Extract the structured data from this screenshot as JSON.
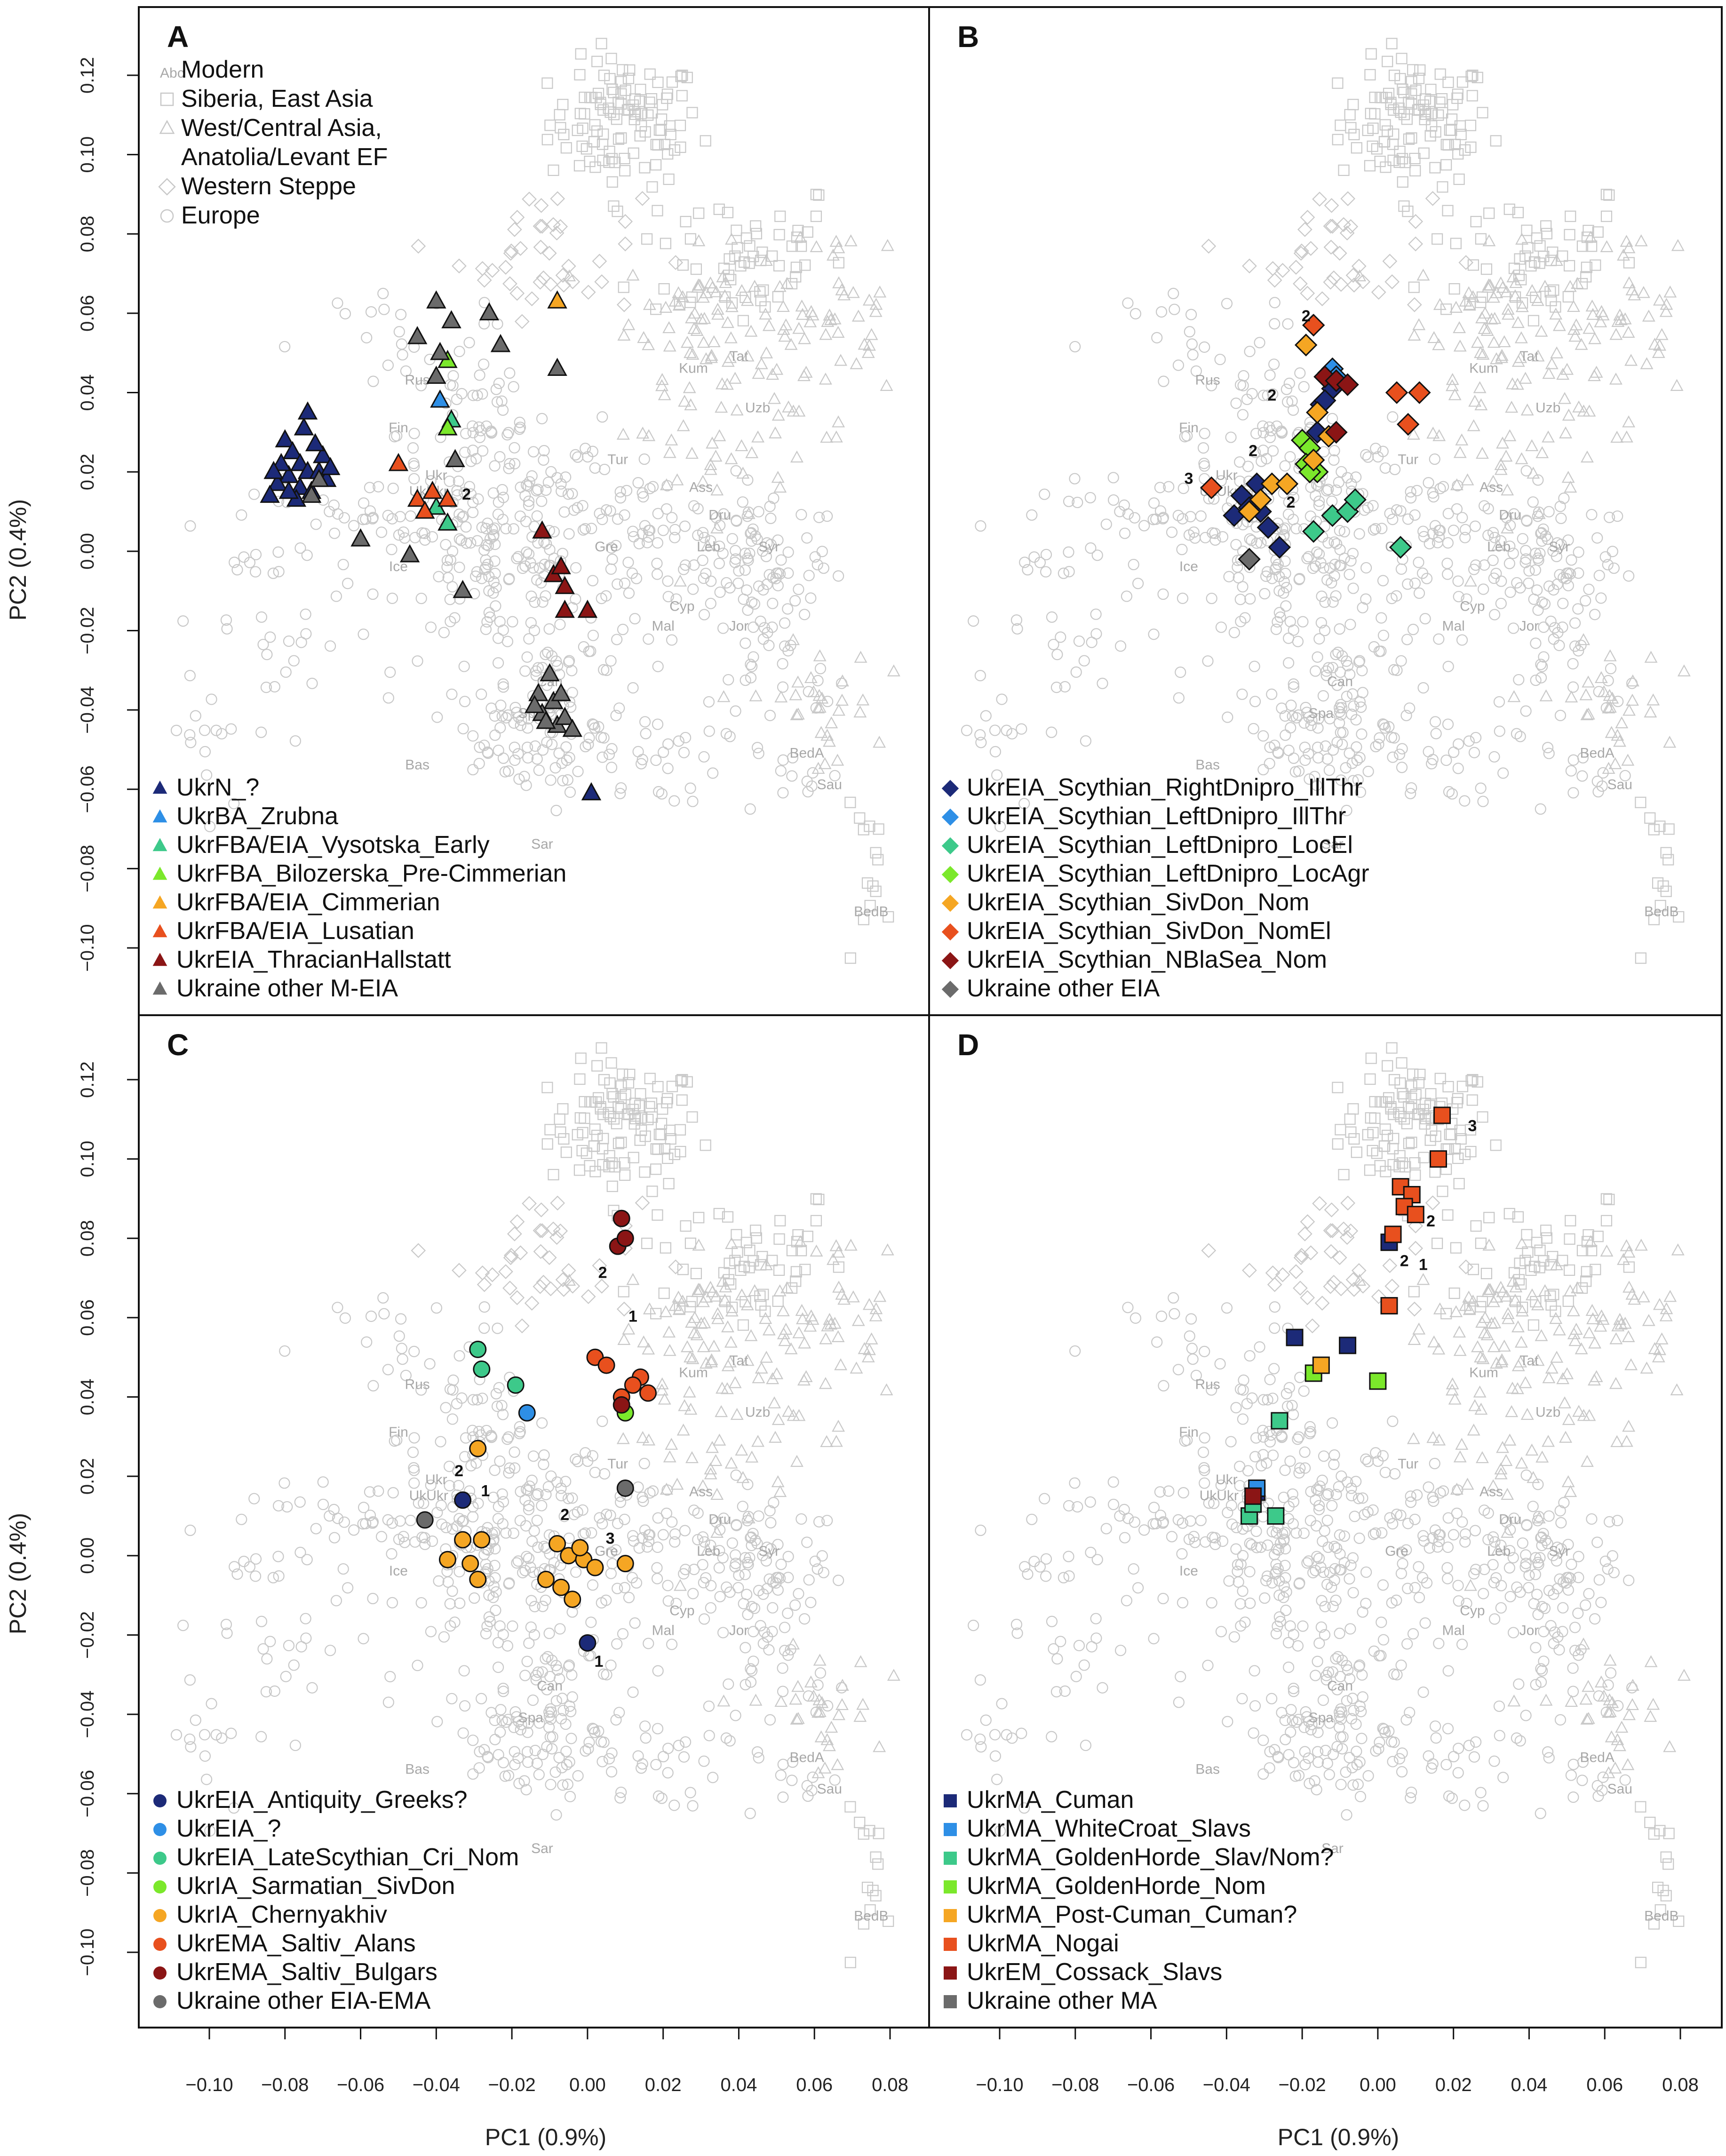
{
  "figure": {
    "xlabel": "PC1 (0.9%)",
    "ylabel": "PC2 (0.4%)",
    "background_legend": {
      "sample_text": "Abc",
      "items": [
        {
          "shape": "none",
          "label": "Modern"
        },
        {
          "shape": "square",
          "label": "Siberia, East Asia"
        },
        {
          "shape": "triangle",
          "label": "West/Central Asia,"
        },
        {
          "shape": "none",
          "label": "Anatolia/Levant EF"
        },
        {
          "shape": "diamond",
          "label": "Western Steppe"
        },
        {
          "shape": "circle",
          "label": "Europe"
        }
      ]
    },
    "reference_labels": [
      "Fin",
      "Ukr",
      "UkUkr",
      "Ice",
      "Rus",
      "Tur",
      "Cyp",
      "Syr",
      "Gre",
      "Mal",
      "Can",
      "Spa",
      "Sar",
      "Bas",
      "BedA",
      "BedB",
      "Sau",
      "Jor",
      "Dru",
      "Leb",
      "Ass",
      "Kum",
      "Tat",
      "Uzb"
    ],
    "colors": {
      "background_points": "#c8c8c8",
      "navy": "#1c2a78",
      "blue": "#2e8fe6",
      "green": "#3dc98a",
      "lime": "#7be82b",
      "orange": "#f5a623",
      "redorange": "#e8501e",
      "darkred": "#8b1515",
      "grey": "#6b6b6b"
    }
  },
  "chart_data": [
    {
      "panel": "A",
      "type": "scatter",
      "xlabel": "",
      "ylabel": "PC2 (0.4%)",
      "xlim": [
        -0.115,
        0.09
      ],
      "ylim": [
        -0.11,
        0.13
      ],
      "marker": "triangle",
      "legend_position": "bottom-left",
      "annotations": [
        {
          "text": "2",
          "x": -0.032,
          "y": 0.013
        }
      ],
      "series": [
        {
          "name": "UkrN_?",
          "color": "#1c2a78",
          "points": [
            [
              -0.08,
              0.028
            ],
            [
              -0.078,
              0.025
            ],
            [
              -0.076,
              0.022
            ],
            [
              -0.074,
              0.02
            ],
            [
              -0.079,
              0.019
            ],
            [
              -0.082,
              0.017
            ],
            [
              -0.076,
              0.016
            ],
            [
              -0.073,
              0.015
            ],
            [
              -0.071,
              0.02
            ],
            [
              -0.07,
              0.024
            ],
            [
              -0.069,
              0.018
            ],
            [
              -0.081,
              0.022
            ],
            [
              -0.077,
              0.013
            ],
            [
              -0.084,
              0.014
            ],
            [
              -0.072,
              0.027
            ],
            [
              -0.075,
              0.031
            ],
            [
              -0.068,
              0.021
            ],
            [
              -0.083,
              0.02
            ],
            [
              -0.074,
              0.035
            ],
            [
              -0.079,
              0.015
            ],
            [
              0.001,
              -0.061
            ]
          ]
        },
        {
          "name": "UkrBA_Zrubna",
          "color": "#2e8fe6",
          "points": [
            [
              -0.039,
              0.038
            ]
          ]
        },
        {
          "name": "UkrFBA/EIA_Vysotska_Early",
          "color": "#3dc98a",
          "points": [
            [
              -0.036,
              0.033
            ],
            [
              -0.04,
              0.011
            ],
            [
              -0.037,
              0.007
            ]
          ]
        },
        {
          "name": "UkrFBA_Bilozerska_Pre-Cimmerian",
          "color": "#7be82b",
          "points": [
            [
              -0.037,
              0.048
            ],
            [
              -0.037,
              0.031
            ]
          ]
        },
        {
          "name": "UkrFBA/EIA_Cimmerian",
          "color": "#f5a623",
          "points": [
            [
              -0.008,
              0.063
            ]
          ]
        },
        {
          "name": "UkrFBA/EIA_Lusatian",
          "color": "#e8501e",
          "points": [
            [
              -0.05,
              0.022
            ],
            [
              -0.045,
              0.013
            ],
            [
              -0.041,
              0.015
            ],
            [
              -0.037,
              0.013
            ],
            [
              -0.043,
              0.01
            ]
          ]
        },
        {
          "name": "UkrEIA_ThracianHallstatt",
          "color": "#8b1515",
          "points": [
            [
              -0.012,
              0.005
            ],
            [
              -0.009,
              -0.006
            ],
            [
              -0.007,
              -0.004
            ],
            [
              -0.006,
              -0.009
            ],
            [
              -0.006,
              -0.015
            ],
            [
              0.0,
              -0.015
            ]
          ]
        },
        {
          "name": "Ukraine other M-EIA",
          "color": "#6b6b6b",
          "points": [
            [
              -0.04,
              0.063
            ],
            [
              -0.036,
              0.058
            ],
            [
              -0.045,
              0.054
            ],
            [
              -0.039,
              0.05
            ],
            [
              -0.04,
              0.044
            ],
            [
              -0.026,
              0.06
            ],
            [
              -0.023,
              0.052
            ],
            [
              -0.008,
              0.046
            ],
            [
              -0.035,
              0.023
            ],
            [
              -0.06,
              0.003
            ],
            [
              -0.047,
              -0.001
            ],
            [
              -0.033,
              -0.01
            ],
            [
              -0.01,
              -0.031
            ],
            [
              -0.013,
              -0.036
            ],
            [
              -0.009,
              -0.038
            ],
            [
              -0.007,
              -0.036
            ],
            [
              -0.012,
              -0.041
            ],
            [
              -0.008,
              -0.044
            ],
            [
              -0.006,
              -0.042
            ],
            [
              -0.004,
              -0.045
            ],
            [
              -0.011,
              -0.043
            ],
            [
              -0.014,
              -0.039
            ],
            [
              -0.071,
              0.018
            ],
            [
              -0.073,
              0.014
            ]
          ]
        }
      ]
    },
    {
      "panel": "B",
      "type": "scatter",
      "xlim": [
        -0.115,
        0.09
      ],
      "ylim": [
        -0.11,
        0.13
      ],
      "marker": "diamond",
      "legend_position": "bottom-left",
      "annotations": [
        {
          "text": "2",
          "x": -0.019,
          "y": 0.058
        },
        {
          "text": "2",
          "x": -0.028,
          "y": 0.038
        },
        {
          "text": "2",
          "x": -0.033,
          "y": 0.024
        },
        {
          "text": "2",
          "x": -0.023,
          "y": 0.011
        },
        {
          "text": "3",
          "x": -0.05,
          "y": 0.017
        }
      ],
      "series": [
        {
          "name": "UkrEIA_Scythian_RightDnipro_IllThr",
          "color": "#1c2a78",
          "points": [
            [
              -0.036,
              0.014
            ],
            [
              -0.034,
              0.011
            ],
            [
              -0.038,
              0.009
            ],
            [
              -0.031,
              0.01
            ],
            [
              -0.029,
              0.006
            ],
            [
              -0.032,
              0.017
            ],
            [
              -0.026,
              0.001
            ],
            [
              -0.016,
              0.03
            ],
            [
              -0.015,
              0.037
            ],
            [
              -0.013,
              0.045
            ],
            [
              -0.012,
              0.041
            ],
            [
              -0.014,
              0.038
            ]
          ]
        },
        {
          "name": "UkrEIA_Scythian_LeftDnipro_IllThr",
          "color": "#2e8fe6",
          "points": [
            [
              -0.012,
              0.046
            ],
            [
              -0.011,
              0.044
            ]
          ]
        },
        {
          "name": "UkrEIA_Scythian_LeftDnipro_LocEl",
          "color": "#3dc98a",
          "points": [
            [
              -0.017,
              0.005
            ],
            [
              -0.012,
              0.009
            ],
            [
              -0.008,
              0.01
            ],
            [
              -0.006,
              0.013
            ],
            [
              0.006,
              0.001
            ]
          ]
        },
        {
          "name": "UkrEIA_Scythian_LeftDnipro_LocAgr",
          "color": "#7be82b",
          "points": [
            [
              -0.02,
              0.028
            ],
            [
              -0.018,
              0.026
            ],
            [
              -0.019,
              0.022
            ],
            [
              -0.016,
              0.02
            ],
            [
              -0.018,
              0.02
            ]
          ]
        },
        {
          "name": "UkrEIA_Scythian_SivDon_Nom",
          "color": "#f5a623",
          "points": [
            [
              -0.019,
              0.052
            ],
            [
              -0.016,
              0.035
            ],
            [
              -0.013,
              0.029
            ],
            [
              -0.028,
              0.017
            ],
            [
              -0.024,
              0.017
            ],
            [
              -0.031,
              0.013
            ],
            [
              -0.034,
              0.01
            ],
            [
              -0.017,
              0.023
            ]
          ]
        },
        {
          "name": "UkrEIA_Scythian_SivDon_NomEl",
          "color": "#e8501e",
          "points": [
            [
              -0.017,
              0.057
            ],
            [
              -0.044,
              0.016
            ],
            [
              0.005,
              0.04
            ],
            [
              0.011,
              0.04
            ],
            [
              0.008,
              0.032
            ]
          ]
        },
        {
          "name": "UkrEIA_Scythian_NBlaSea_Nom",
          "color": "#8b1515",
          "points": [
            [
              -0.014,
              0.044
            ],
            [
              -0.011,
              0.043
            ],
            [
              -0.008,
              0.042
            ],
            [
              -0.011,
              0.03
            ]
          ]
        },
        {
          "name": "Ukraine other EIA",
          "color": "#6b6b6b",
          "points": [
            [
              -0.034,
              -0.002
            ]
          ]
        }
      ]
    },
    {
      "panel": "C",
      "type": "scatter",
      "xlim": [
        -0.115,
        0.09
      ],
      "ylim": [
        -0.11,
        0.13
      ],
      "marker": "circle",
      "legend_position": "bottom-left",
      "annotations": [
        {
          "text": "2",
          "x": 0.004,
          "y": 0.07
        },
        {
          "text": "1",
          "x": 0.012,
          "y": 0.059
        },
        {
          "text": "2",
          "x": -0.034,
          "y": 0.02
        },
        {
          "text": "1",
          "x": -0.027,
          "y": 0.015
        },
        {
          "text": "2",
          "x": -0.006,
          "y": 0.009
        },
        {
          "text": "3",
          "x": 0.006,
          "y": 0.003
        },
        {
          "text": "1",
          "x": 0.003,
          "y": -0.028
        }
      ],
      "series": [
        {
          "name": "UkrEIA_Antiquity_Greeks?",
          "color": "#1c2a78",
          "points": [
            [
              -0.033,
              0.014
            ],
            [
              0.0,
              -0.022
            ]
          ]
        },
        {
          "name": "UkrEIA_?",
          "color": "#2e8fe6",
          "points": [
            [
              -0.016,
              0.036
            ]
          ]
        },
        {
          "name": "UkrEIA_LateScythian_Cri_Nom",
          "color": "#3dc98a",
          "points": [
            [
              -0.029,
              0.052
            ],
            [
              -0.028,
              0.047
            ],
            [
              -0.019,
              0.043
            ]
          ]
        },
        {
          "name": "UkrIA_Sarmatian_SivDon",
          "color": "#7be82b",
          "points": [
            [
              0.01,
              0.036
            ]
          ]
        },
        {
          "name": "UkrIA_Chernyakhiv",
          "color": "#f5a623",
          "points": [
            [
              -0.029,
              0.027
            ],
            [
              -0.033,
              0.004
            ],
            [
              -0.028,
              0.004
            ],
            [
              -0.037,
              -0.001
            ],
            [
              -0.031,
              -0.002
            ],
            [
              -0.029,
              -0.006
            ],
            [
              -0.011,
              -0.006
            ],
            [
              -0.008,
              0.003
            ],
            [
              -0.005,
              0.0
            ],
            [
              -0.001,
              -0.001
            ],
            [
              -0.007,
              -0.008
            ],
            [
              -0.004,
              -0.011
            ],
            [
              0.002,
              -0.003
            ],
            [
              -0.002,
              0.002
            ],
            [
              0.01,
              -0.002
            ]
          ]
        },
        {
          "name": "UkrEMA_Saltiv_Alans",
          "color": "#e8501e",
          "points": [
            [
              0.002,
              0.05
            ],
            [
              0.005,
              0.048
            ],
            [
              0.009,
              0.04
            ],
            [
              0.014,
              0.045
            ],
            [
              0.016,
              0.041
            ],
            [
              0.012,
              0.043
            ]
          ]
        },
        {
          "name": "UkrEMA_Saltiv_Bulgars",
          "color": "#8b1515",
          "points": [
            [
              0.009,
              0.085
            ],
            [
              0.008,
              0.078
            ],
            [
              0.01,
              0.08
            ],
            [
              0.009,
              0.038
            ]
          ]
        },
        {
          "name": "Ukraine other EIA-EMA",
          "color": "#6b6b6b",
          "points": [
            [
              0.01,
              0.017
            ],
            [
              -0.043,
              0.009
            ]
          ]
        }
      ]
    },
    {
      "panel": "D",
      "type": "scatter",
      "xlim": [
        -0.115,
        0.09
      ],
      "ylim": [
        -0.11,
        0.13
      ],
      "marker": "square",
      "legend_position": "bottom-left",
      "annotations": [
        {
          "text": "3",
          "x": 0.025,
          "y": 0.107
        },
        {
          "text": "2",
          "x": 0.014,
          "y": 0.083
        },
        {
          "text": "2",
          "x": 0.007,
          "y": 0.073
        },
        {
          "text": "1",
          "x": 0.012,
          "y": 0.072
        }
      ],
      "series": [
        {
          "name": "UkrMA_Cuman",
          "color": "#1c2a78",
          "points": [
            [
              -0.022,
              0.055
            ],
            [
              -0.008,
              0.053
            ],
            [
              -0.032,
              0.016
            ],
            [
              0.003,
              0.079
            ]
          ]
        },
        {
          "name": "UkrMA_WhiteCroat_Slavs",
          "color": "#2e8fe6",
          "points": [
            [
              -0.032,
              0.017
            ]
          ]
        },
        {
          "name": "UkrMA_GoldenHorde_Slav/Nom?",
          "color": "#3dc98a",
          "points": [
            [
              -0.026,
              0.034
            ],
            [
              -0.034,
              0.01
            ],
            [
              -0.027,
              0.01
            ],
            [
              -0.033,
              0.013
            ]
          ]
        },
        {
          "name": "UkrMA_GoldenHorde_Nom",
          "color": "#7be82b",
          "points": [
            [
              -0.017,
              0.046
            ],
            [
              0.0,
              0.044
            ]
          ]
        },
        {
          "name": "UkrMA_Post-Cuman_Cuman?",
          "color": "#f5a623",
          "points": [
            [
              -0.015,
              0.048
            ]
          ]
        },
        {
          "name": "UkrMA_Nogai",
          "color": "#e8501e",
          "points": [
            [
              0.017,
              0.111
            ],
            [
              0.016,
              0.1
            ],
            [
              0.006,
              0.093
            ],
            [
              0.009,
              0.091
            ],
            [
              0.007,
              0.088
            ],
            [
              0.01,
              0.086
            ],
            [
              0.004,
              0.081
            ],
            [
              0.003,
              0.063
            ]
          ]
        },
        {
          "name": "UkrEM_Cossack_Slavs",
          "color": "#8b1515",
          "points": [
            [
              -0.033,
              0.015
            ]
          ]
        },
        {
          "name": "Ukraine other MA",
          "color": "#6b6b6b",
          "points": []
        }
      ]
    }
  ]
}
